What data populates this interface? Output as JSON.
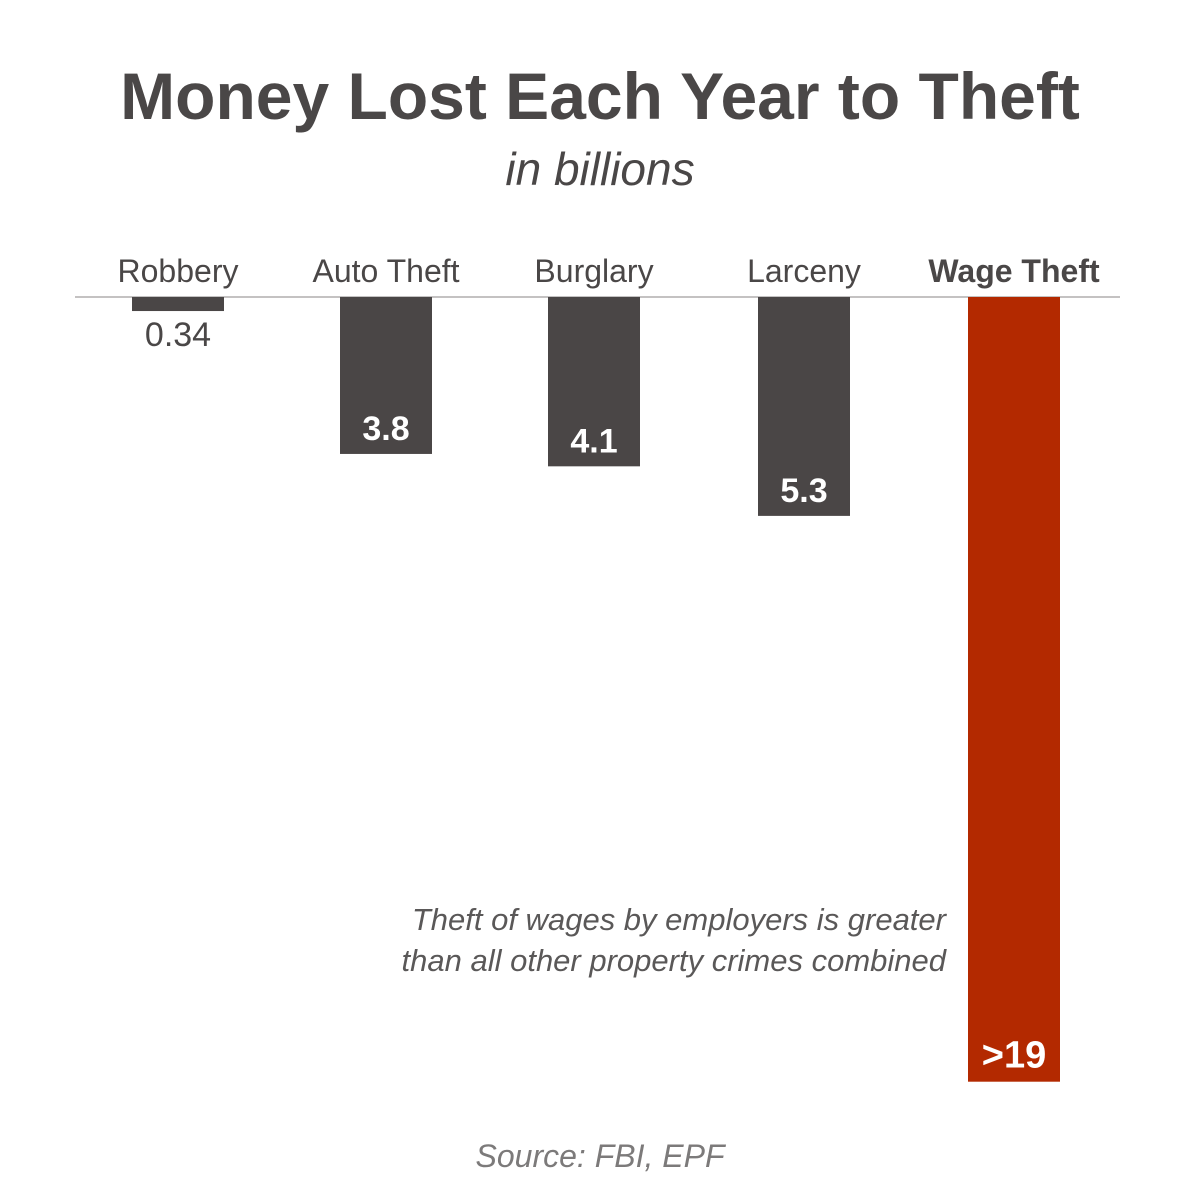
{
  "header": {
    "title": "Money Lost Each Year to Theft",
    "subtitle": "in billions"
  },
  "footer": {
    "source": "Source: FBI, EPF"
  },
  "chart_data": {
    "type": "bar",
    "orientation": "hanging-down",
    "categories": [
      "Robbery",
      "Auto Theft",
      "Burglary",
      "Larceny",
      "Wage Theft"
    ],
    "values": [
      0.34,
      3.8,
      4.1,
      5.3,
      19
    ],
    "value_labels": [
      "0.34",
      "3.8",
      "4.1",
      "5.3",
      ">19"
    ],
    "highlight_index": 4,
    "colors": {
      "bar": "#4a4646",
      "highlight": "#b32900",
      "text": "#4a4747",
      "axis": "#b0aeae"
    },
    "annotation": {
      "lines": [
        "Theft of wages by employers is greater",
        "than all other property crimes combined"
      ]
    },
    "grid": false
  }
}
